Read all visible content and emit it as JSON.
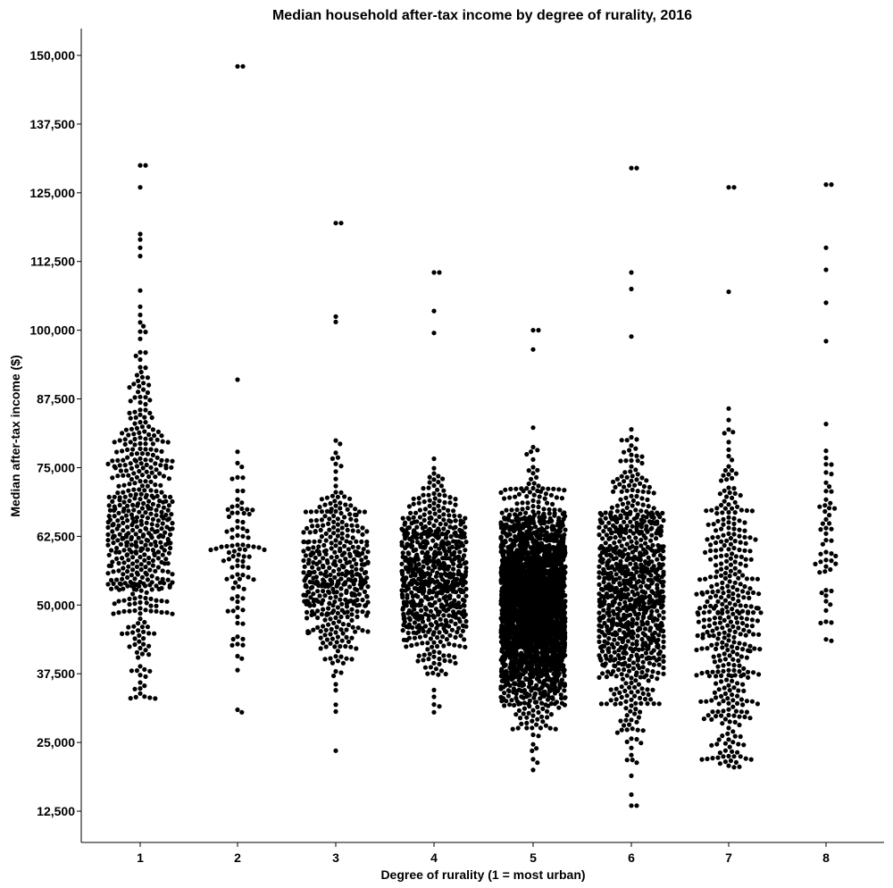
{
  "chart_data": {
    "type": "scatter",
    "subtype": "beeswarm",
    "title": "Median household after-tax income by degree of rurality, 2016",
    "xlabel": "Degree of rurality (1 = most urban)",
    "ylabel": "Median after-tax income ($)",
    "categories": [
      "1",
      "2",
      "3",
      "4",
      "5",
      "6",
      "7",
      "8"
    ],
    "ylim": [
      5000,
      155000
    ],
    "yticks": [
      12500,
      25000,
      37500,
      50000,
      62500,
      75000,
      87500,
      100000,
      112500,
      125000,
      137500,
      150000
    ],
    "ytick_labels": [
      "12,500",
      "25,000",
      "37,500",
      "50,000",
      "62,500",
      "75,000",
      "87,500",
      "100,000",
      "112,500",
      "125,000",
      "137,500",
      "150,000"
    ],
    "grid": false,
    "legend": "none",
    "point_color": "#000000",
    "groups": [
      {
        "category": "1",
        "count": 520,
        "min": 33000,
        "max": 130000,
        "median": 65000,
        "core": [
          48000,
          90000
        ]
      },
      {
        "category": "2",
        "count": 95,
        "min": 30500,
        "max": 148000,
        "median": 57000,
        "core": [
          45000,
          70000
        ]
      },
      {
        "category": "3",
        "count": 430,
        "min": 23500,
        "max": 119500,
        "median": 55000,
        "core": [
          42000,
          68000
        ]
      },
      {
        "category": "4",
        "count": 700,
        "min": 30500,
        "max": 110500,
        "median": 55000,
        "core": [
          45000,
          70000
        ]
      },
      {
        "category": "5",
        "count": 3000,
        "min": 20000,
        "max": 100000,
        "median": 50000,
        "core": [
          38000,
          65000
        ]
      },
      {
        "category": "6",
        "count": 900,
        "min": 13500,
        "max": 129500,
        "median": 52000,
        "core": [
          40000,
          75000
        ]
      },
      {
        "category": "7",
        "count": 400,
        "min": 20500,
        "max": 126000,
        "median": 48000,
        "core": [
          30000,
          75000
        ]
      },
      {
        "category": "8",
        "count": 60,
        "min": 43500,
        "max": 126500,
        "median": 63000,
        "core": [
          48000,
          77000
        ]
      }
    ],
    "outliers": [
      {
        "category": "1",
        "values": [
          130000,
          126000,
          117500,
          116500,
          115000,
          113500
        ]
      },
      {
        "category": "2",
        "values": [
          148000,
          91000
        ]
      },
      {
        "category": "3",
        "values": [
          119500,
          102500,
          101500
        ]
      },
      {
        "category": "4",
        "values": [
          110500,
          103500,
          99500
        ]
      },
      {
        "category": "5",
        "values": [
          100000,
          96500
        ]
      },
      {
        "category": "6",
        "values": [
          129500,
          110500,
          107500,
          15500,
          13500
        ]
      },
      {
        "category": "7",
        "values": [
          126000,
          107000
        ]
      },
      {
        "category": "8",
        "values": [
          126500,
          115000,
          111000,
          105000,
          98000
        ]
      }
    ]
  }
}
